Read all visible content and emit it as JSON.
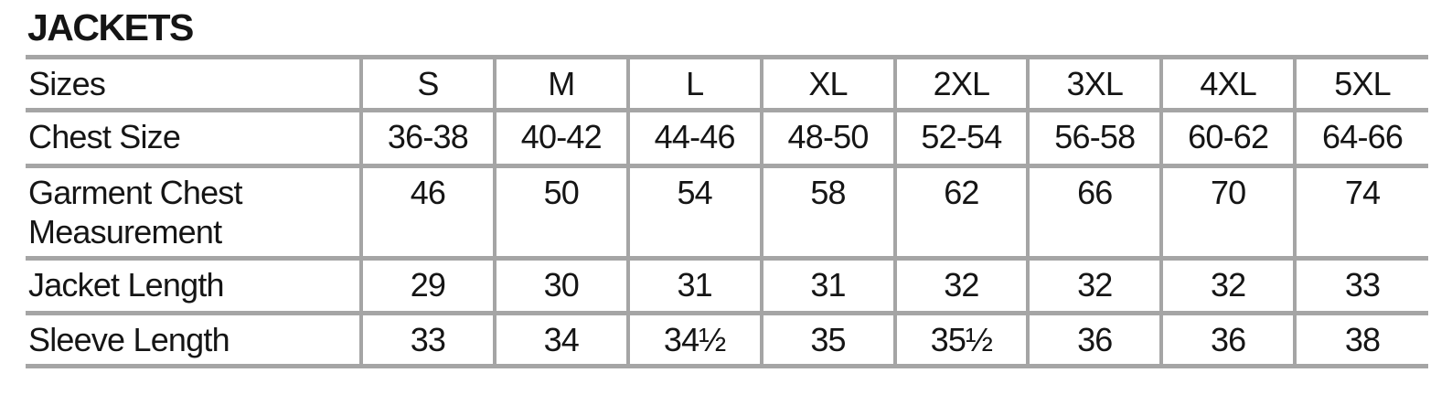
{
  "title": "JACKETS",
  "colors": {
    "border": "#a5a5a5",
    "text": "#151515",
    "background": "#ffffff"
  },
  "table": {
    "header_label": "Sizes",
    "columns": [
      "S",
      "M",
      "L",
      "XL",
      "2XL",
      "3XL",
      "4XL",
      "5XL"
    ],
    "rows": [
      {
        "label": "Chest Size",
        "values": [
          "36-38",
          "40-42",
          "44-46",
          "48-50",
          "52-54",
          "56-58",
          "60-62",
          "64-66"
        ]
      },
      {
        "label": "Garment Chest Measurement",
        "values": [
          "46",
          "50",
          "54",
          "58",
          "62",
          "66",
          "70",
          "74"
        ]
      },
      {
        "label": "Jacket Length",
        "values": [
          "29",
          "30",
          "31",
          "31",
          "32",
          "32",
          "32",
          "33"
        ]
      },
      {
        "label": "Sleeve Length",
        "values": [
          "33",
          "34",
          "34½",
          "35",
          "35½",
          "36",
          "36",
          "38"
        ]
      }
    ]
  }
}
